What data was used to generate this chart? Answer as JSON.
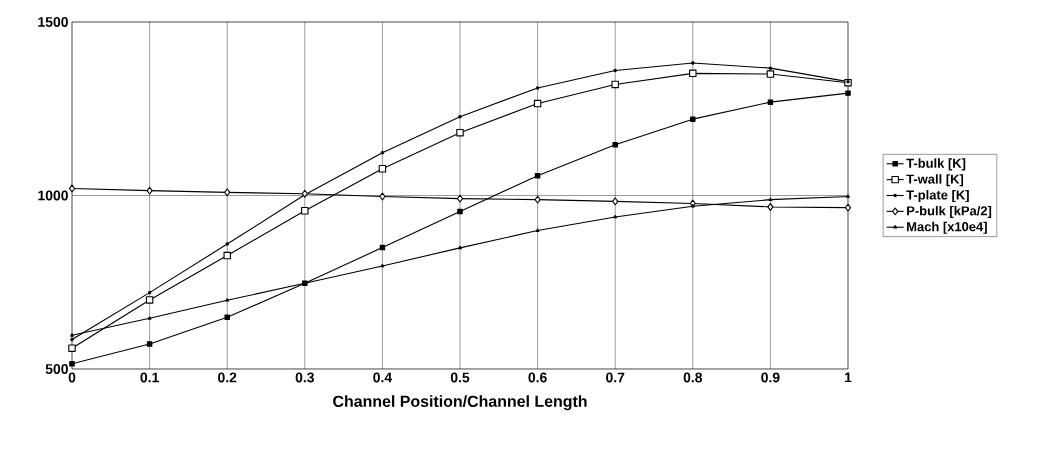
{
  "chart_data": {
    "type": "line",
    "xlabel": "Channel Position/Channel Length",
    "x": [
      0,
      0.1,
      0.2,
      0.3,
      0.4,
      0.5,
      0.6,
      0.7,
      0.8,
      0.9,
      1
    ],
    "series": [
      {
        "name": "T-bulk [K]",
        "color": "#000000",
        "marker": "square_filled",
        "values": [
          515,
          572,
          649,
          747,
          850,
          954,
          1057,
          1146,
          1220,
          1269,
          1295
        ]
      },
      {
        "name": "T-wall [K]",
        "color": "#000000",
        "marker": "square",
        "values": [
          560,
          699,
          827,
          956,
          1077,
          1181,
          1265,
          1320,
          1352,
          1350,
          1325
        ]
      },
      {
        "name": "T-plate [K]",
        "color": "#000000",
        "marker": "circle",
        "values": [
          585,
          720,
          860,
          1002,
          1123,
          1227,
          1310,
          1360,
          1382,
          1367,
          1328
        ]
      },
      {
        "name": "P-bulk [kPa/2]",
        "color": "#000000",
        "marker": "diamond",
        "values": [
          1020,
          1014,
          1009,
          1005,
          997,
          991,
          988,
          983,
          977,
          967,
          965
        ]
      },
      {
        "name": "Mach [x10e4]",
        "color": "#000000",
        "marker": "triangle",
        "values": [
          597,
          646,
          698,
          747,
          797,
          849,
          899,
          938,
          969,
          988,
          997
        ]
      }
    ],
    "xlim": [
      0,
      1
    ],
    "xticks": [
      0,
      0.1,
      0.2,
      0.3,
      0.4,
      0.5,
      0.6,
      0.7,
      0.8,
      0.9,
      1
    ],
    "ylim": [
      500,
      1500
    ],
    "yticks": [
      500,
      1000,
      1500
    ],
    "grid": true,
    "legend": "right",
    "line_style": "solid"
  }
}
